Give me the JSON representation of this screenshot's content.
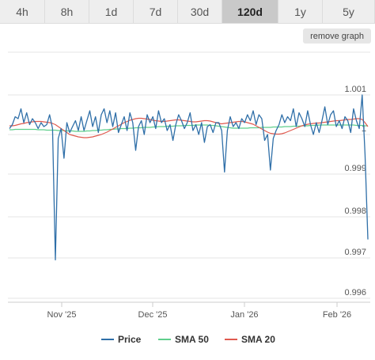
{
  "tabs": [
    {
      "label": "4h",
      "active": false
    },
    {
      "label": "8h",
      "active": false
    },
    {
      "label": "1d",
      "active": false
    },
    {
      "label": "7d",
      "active": false
    },
    {
      "label": "30d",
      "active": false
    },
    {
      "label": "120d",
      "active": true
    },
    {
      "label": "1y",
      "active": false
    },
    {
      "label": "5y",
      "active": false
    }
  ],
  "remove_graph_label": "remove graph",
  "chart_data": {
    "type": "line",
    "title": "",
    "xlabel": "",
    "ylabel": "",
    "x_ticks": [
      "Nov '25",
      "Dec '25",
      "Jan '26",
      "Feb '26"
    ],
    "y_ticks": [
      "1.001",
      "1",
      "0.999",
      "0.998",
      "0.997",
      "0.996"
    ],
    "ylim": [
      0.996,
      1.0012
    ],
    "grid": true,
    "legend": "bottom",
    "colors": {
      "Price": "#2f6fa8",
      "SMA 50": "#5fcf8c",
      "SMA 20": "#e05a4f"
    },
    "series": [
      {
        "name": "Price",
        "values": [
          1.00015,
          1.00025,
          1.00045,
          1.0004,
          1.00065,
          1.0003,
          1.00055,
          1.00025,
          1.0004,
          1.0003,
          1.00015,
          1.0003,
          1.0002,
          1.00025,
          1.0005,
          1.00015,
          0.99695,
          0.9999,
          1.00015,
          0.9994,
          1.0003,
          1.00005,
          1.0002,
          1.00035,
          1.0001,
          1.00045,
          1.0001,
          1.00035,
          1.0006,
          1.0002,
          1.00045,
          1.00005,
          1.0005,
          1.00065,
          1.0003,
          1.0006,
          1.0002,
          1.00055,
          1.00005,
          1.00025,
          1.00045,
          1.0001,
          1.00055,
          1.0003,
          0.9996,
          1.0002,
          1.00035,
          1.0,
          1.0005,
          1.0003,
          1.00045,
          1.00015,
          1.0006,
          1.0003,
          1.0004,
          1.0001,
          1.00025,
          0.99985,
          1.00025,
          1.0005,
          1.00035,
          1.00015,
          1.0003,
          1.00055,
          1.0001,
          1.00025,
          1.0,
          1.0003,
          0.9998,
          1.0002,
          1.00025,
          1.00005,
          1.0003,
          1.0003,
          1.0001,
          0.99905,
          1.0001,
          1.00045,
          1.0002,
          1.0003,
          1.00015,
          1.0004,
          1.0003,
          1.0005,
          1.00035,
          1.0006,
          1.00025,
          1.0005,
          1.0004,
          0.99985,
          1.0,
          0.9991,
          0.9999,
          1.0001,
          1.00025,
          1.0005,
          1.0003,
          1.00045,
          1.00035,
          1.00065,
          1.0002,
          1.00055,
          1.0004,
          1.0002,
          1.0006,
          1.00025,
          1.0,
          1.0003,
          1.00005,
          1.00035,
          1.0007,
          1.00025,
          1.0005,
          1.0006,
          1.0002,
          1.00035,
          1.00015,
          1.00045,
          1.00035,
          1.00005,
          1.00065,
          1.00035,
          1.00015,
          1.001,
          0.9995,
          0.99745
        ]
      },
      {
        "name": "SMA 50",
        "values": [
          1.00012,
          1.00012,
          1.00013,
          1.00013,
          1.00013,
          1.00013,
          1.00013,
          1.00013,
          1.00013,
          1.00013,
          1.00012,
          1.00012,
          1.00012,
          1.00011,
          1.00011,
          1.00011,
          1.00011,
          1.0001,
          1.0001,
          1.0001,
          1.00009,
          1.00009,
          1.00009,
          1.00008,
          1.00008,
          1.00008,
          1.00008,
          1.00009,
          1.00009,
          1.0001,
          1.0001,
          1.00011,
          1.00011,
          1.00012,
          1.00012,
          1.00013,
          1.00013,
          1.00014,
          1.00014,
          1.00015,
          1.00015,
          1.00015,
          1.00016,
          1.00016,
          1.00017,
          1.00017,
          1.00017,
          1.00018,
          1.00018,
          1.00018,
          1.00019,
          1.00019,
          1.0002,
          1.0002,
          1.0002,
          1.00021,
          1.00021,
          1.00021,
          1.00022,
          1.00022,
          1.00022,
          1.00023,
          1.00023,
          1.00023,
          1.00023,
          1.00024,
          1.00024,
          1.00024,
          1.00024,
          1.00024,
          1.00023,
          1.00023,
          1.00022,
          1.00021,
          1.0002,
          1.00019,
          1.00018,
          1.00017,
          1.00016,
          1.00016,
          1.00016,
          1.00016,
          1.00016,
          1.00016,
          1.00017,
          1.00017,
          1.00017,
          1.00017,
          1.00018,
          1.00018,
          1.00018,
          1.00018,
          1.00019,
          1.00019,
          1.00019,
          1.00019,
          1.0002,
          1.0002,
          1.0002,
          1.00021,
          1.00021,
          1.00021,
          1.00022,
          1.00022,
          1.00022,
          1.00023,
          1.00023,
          1.00023,
          1.00024,
          1.00024,
          1.00024,
          1.00024,
          1.00024,
          1.00024,
          1.00024,
          1.00024,
          1.00024,
          1.00024,
          1.00024,
          1.00024,
          1.00024,
          1.00023,
          1.00023,
          1.00023,
          1.00022,
          1.00022
        ]
      },
      {
        "name": "SMA 20",
        "values": [
          1.00022,
          1.00022,
          1.00023,
          1.00025,
          1.00027,
          1.00028,
          1.0003,
          1.00031,
          1.00032,
          1.00033,
          1.00033,
          1.00033,
          1.00032,
          1.00031,
          1.0003,
          1.00028,
          1.00025,
          1.0002,
          1.00015,
          1.0001,
          1.00005,
          1.0,
          0.99998,
          0.99996,
          0.99994,
          0.99993,
          0.99992,
          0.99992,
          0.99993,
          0.99994,
          0.99996,
          0.99998,
          1.0,
          1.00003,
          1.00006,
          1.0001,
          1.00014,
          1.00018,
          1.00022,
          1.00026,
          1.0003,
          1.00033,
          1.00036,
          1.00038,
          1.0004,
          1.00041,
          1.00041,
          1.0004,
          1.00039,
          1.00038,
          1.00036,
          1.00035,
          1.00034,
          1.00033,
          1.00033,
          1.00034,
          1.00035,
          1.00036,
          1.00037,
          1.00037,
          1.00036,
          1.00035,
          1.00034,
          1.00033,
          1.00032,
          1.00032,
          1.00033,
          1.00034,
          1.00035,
          1.00035,
          1.00034,
          1.00032,
          1.0003,
          1.00028,
          1.00027,
          1.00028,
          1.00029,
          1.0003,
          1.00031,
          1.00032,
          1.00033,
          1.00033,
          1.00032,
          1.0003,
          1.00028,
          1.00026,
          1.00022,
          1.00018,
          1.00014,
          1.0001,
          1.00006,
          1.00003,
          1.00002,
          1.00001,
          1.00001,
          1.00002,
          1.00004,
          1.00007,
          1.0001,
          1.00013,
          1.00016,
          1.00019,
          1.00022,
          1.00024,
          1.00026,
          1.00027,
          1.00028,
          1.00029,
          1.00029,
          1.0003,
          1.00031,
          1.00032,
          1.00033,
          1.00034,
          1.00035,
          1.00035,
          1.00036,
          1.00037,
          1.00038,
          1.00038,
          1.00039,
          1.0004,
          1.0004,
          1.00038,
          1.0003,
          1.0002
        ]
      }
    ]
  }
}
